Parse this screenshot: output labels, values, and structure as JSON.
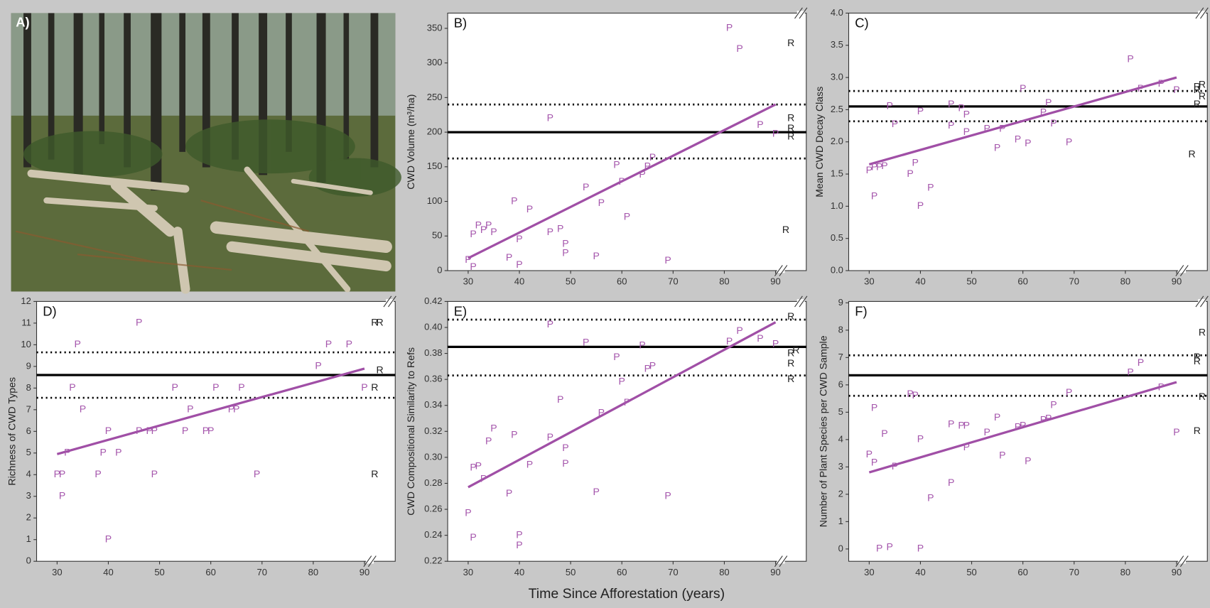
{
  "panel_a": {
    "label": "A)"
  },
  "x_label": "Time Since Afforestation (years)",
  "chart_data": [
    {
      "type": "scatter",
      "title": "B)",
      "ylabel": "CWD Volume (m³/ha)",
      "xlim": [
        26,
        96
      ],
      "ylim": [
        0,
        372
      ],
      "xticks": [
        30,
        40,
        50,
        60,
        70,
        80,
        90
      ],
      "yticks": [
        0,
        50,
        100,
        150,
        200,
        250,
        300,
        350
      ],
      "series": [
        {
          "name": "P",
          "color": "#a556ac",
          "x": [
            30,
            31,
            31,
            32,
            33,
            34,
            35,
            38,
            39,
            40,
            40,
            42,
            46,
            46,
            48,
            49,
            49,
            53,
            55,
            56,
            59,
            60,
            61,
            64,
            65,
            66,
            69,
            81,
            83,
            87,
            90
          ],
          "values": [
            15,
            5,
            52,
            65,
            58,
            65,
            55,
            18,
            100,
            45,
            8,
            88,
            55,
            220,
            60,
            38,
            25,
            120,
            20,
            97,
            152,
            128,
            77,
            138,
            150,
            163,
            14,
            350,
            320,
            210,
            197
          ]
        },
        {
          "name": "R",
          "color": "#222222",
          "x": [
            93,
            93,
            93,
            93,
            92
          ],
          "values": [
            328,
            220,
            205,
            193,
            58
          ]
        }
      ],
      "trend": {
        "color": "#a04fa6",
        "x": [
          30,
          90
        ],
        "values": [
          18,
          240
        ]
      },
      "reference": {
        "color": "#000000",
        "mean": 200,
        "lower": 162,
        "upper": 240
      }
    },
    {
      "type": "scatter",
      "title": "C)",
      "ylabel": "Mean CWD Decay Class",
      "xlim": [
        26,
        96
      ],
      "ylim": [
        0,
        4
      ],
      "xticks": [
        30,
        40,
        50,
        60,
        70,
        80,
        90
      ],
      "yticks": [
        {
          "value": 0,
          "label": "0.0"
        },
        0.5,
        {
          "value": 1,
          "label": "1.0"
        },
        1.5,
        {
          "value": 2,
          "label": "2.0"
        },
        2.5,
        {
          "value": 3,
          "label": "3.0"
        },
        3.5,
        {
          "value": 4,
          "label": "4.0"
        }
      ],
      "series": [
        {
          "name": "P",
          "color": "#a556ac",
          "x": [
            30,
            31,
            31,
            32,
            33,
            34,
            35,
            38,
            39,
            40,
            40,
            42,
            46,
            46,
            48,
            49,
            49,
            53,
            55,
            56,
            59,
            60,
            61,
            64,
            65,
            66,
            69,
            81,
            83,
            87,
            90
          ],
          "values": [
            1.55,
            1.6,
            1.15,
            1.6,
            1.62,
            2.55,
            2.27,
            1.5,
            1.67,
            1.0,
            2.47,
            1.28,
            2.58,
            2.25,
            2.52,
            2.42,
            2.15,
            2.2,
            1.9,
            2.2,
            2.03,
            2.82,
            1.97,
            2.45,
            2.6,
            2.28,
            1.99,
            3.28,
            2.82,
            2.9,
            2.8
          ]
        },
        {
          "name": "R",
          "color": "#222222",
          "x": [
            94,
            95,
            94,
            95,
            94,
            93
          ],
          "values": [
            2.85,
            2.88,
            2.8,
            2.7,
            2.58,
            1.8
          ]
        }
      ],
      "trend": {
        "color": "#a04fa6",
        "x": [
          30,
          90
        ],
        "values": [
          1.65,
          3.0
        ]
      },
      "reference": {
        "color": "#000000",
        "mean": 2.55,
        "lower": 2.32,
        "upper": 2.79
      }
    },
    {
      "type": "scatter",
      "title": "D)",
      "ylabel": "Richness of CWD Types",
      "xlim": [
        26,
        96
      ],
      "ylim": [
        0,
        12
      ],
      "xticks": [
        30,
        40,
        50,
        60,
        70,
        80,
        90
      ],
      "yticks": [
        0,
        1,
        2,
        3,
        4,
        5,
        6,
        7,
        8,
        9,
        10,
        11,
        12
      ],
      "series": [
        {
          "name": "P",
          "color": "#a556ac",
          "x": [
            30,
            31,
            31,
            32,
            33,
            34,
            35,
            38,
            39,
            40,
            40,
            42,
            46,
            46,
            48,
            49,
            49,
            53,
            55,
            56,
            59,
            60,
            61,
            64,
            65,
            66,
            69,
            81,
            83,
            87,
            90
          ],
          "values": [
            4,
            4,
            3,
            5,
            8,
            10,
            7,
            4,
            5,
            6,
            1,
            5,
            11,
            6,
            6,
            6,
            4,
            8,
            6,
            7,
            6,
            6,
            8,
            7,
            7,
            8,
            4,
            9,
            10,
            10,
            8
          ]
        },
        {
          "name": "R",
          "color": "#222222",
          "x": [
            92,
            93,
            93,
            92,
            92
          ],
          "values": [
            11,
            11,
            8.8,
            8,
            4
          ]
        }
      ],
      "trend": {
        "color": "#a04fa6",
        "x": [
          30,
          90
        ],
        "values": [
          4.95,
          8.9
        ]
      },
      "reference": {
        "color": "#000000",
        "mean": 8.6,
        "lower": 7.55,
        "upper": 9.65
      }
    },
    {
      "type": "scatter",
      "title": "E)",
      "ylabel": "CWD Compositional Similarity to Refs",
      "xlim": [
        26,
        96
      ],
      "ylim": [
        0.22,
        0.42
      ],
      "xticks": [
        30,
        40,
        50,
        60,
        70,
        80,
        90
      ],
      "yticks": [
        0.22,
        0.24,
        0.26,
        0.28,
        {
          "value": 0.3,
          "label": "0.30"
        },
        0.32,
        0.34,
        0.36,
        0.38,
        {
          "value": 0.4,
          "label": "0.40"
        },
        0.42
      ],
      "series": [
        {
          "name": "P",
          "color": "#a556ac",
          "x": [
            30,
            31,
            31,
            32,
            33,
            34,
            35,
            38,
            39,
            40,
            40,
            42,
            46,
            46,
            48,
            49,
            49,
            53,
            55,
            56,
            59,
            60,
            61,
            64,
            65,
            66,
            69,
            81,
            83,
            87,
            90
          ],
          "values": [
            0.257,
            0.238,
            0.292,
            0.293,
            0.283,
            0.312,
            0.322,
            0.272,
            0.317,
            0.24,
            0.232,
            0.294,
            0.315,
            0.402,
            0.344,
            0.307,
            0.295,
            0.388,
            0.273,
            0.334,
            0.377,
            0.358,
            0.342,
            0.386,
            0.368,
            0.37,
            0.27,
            0.389,
            0.397,
            0.391,
            0.387
          ]
        },
        {
          "name": "R",
          "color": "#222222",
          "x": [
            93,
            94,
            93,
            93,
            93
          ],
          "values": [
            0.408,
            0.382,
            0.38,
            0.372,
            0.36
          ]
        }
      ],
      "trend": {
        "color": "#a04fa6",
        "x": [
          30,
          90
        ],
        "values": [
          0.277,
          0.404
        ]
      },
      "reference": {
        "color": "#000000",
        "mean": 0.385,
        "lower": 0.363,
        "upper": 0.406
      }
    },
    {
      "type": "scatter",
      "title": "F)",
      "ylabel": "Number of Plant Species per CWD Sample",
      "xlim": [
        26,
        96
      ],
      "ylim": [
        -0.45,
        9.05
      ],
      "xticks": [
        30,
        40,
        50,
        60,
        70,
        80,
        90
      ],
      "yticks": [
        0,
        1,
        2,
        3,
        4,
        5,
        6,
        7,
        8,
        9
      ],
      "series": [
        {
          "name": "P",
          "color": "#a556ac",
          "x": [
            30,
            31,
            31,
            32,
            33,
            34,
            35,
            38,
            39,
            40,
            40,
            42,
            46,
            46,
            48,
            49,
            49,
            53,
            55,
            56,
            59,
            60,
            61,
            64,
            65,
            66,
            69,
            81,
            83,
            87,
            90
          ],
          "values": [
            3.45,
            3.15,
            5.15,
            0,
            4.2,
            0.05,
            3.0,
            5.65,
            5.6,
            4.0,
            0,
            1.85,
            4.55,
            2.4,
            4.5,
            4.5,
            3.7,
            4.25,
            4.8,
            3.4,
            4.45,
            4.5,
            3.2,
            4.7,
            4.75,
            5.25,
            5.7,
            6.45,
            6.8,
            5.9,
            4.25
          ]
        },
        {
          "name": "R",
          "color": "#222222",
          "x": [
            95,
            94,
            94,
            95,
            94
          ],
          "values": [
            7.9,
            7.0,
            6.85,
            5.55,
            4.3
          ]
        }
      ],
      "trend": {
        "color": "#a04fa6",
        "x": [
          30,
          90
        ],
        "values": [
          2.8,
          6.1
        ]
      },
      "reference": {
        "color": "#000000",
        "mean": 6.35,
        "lower": 5.6,
        "upper": 7.08
      }
    }
  ]
}
